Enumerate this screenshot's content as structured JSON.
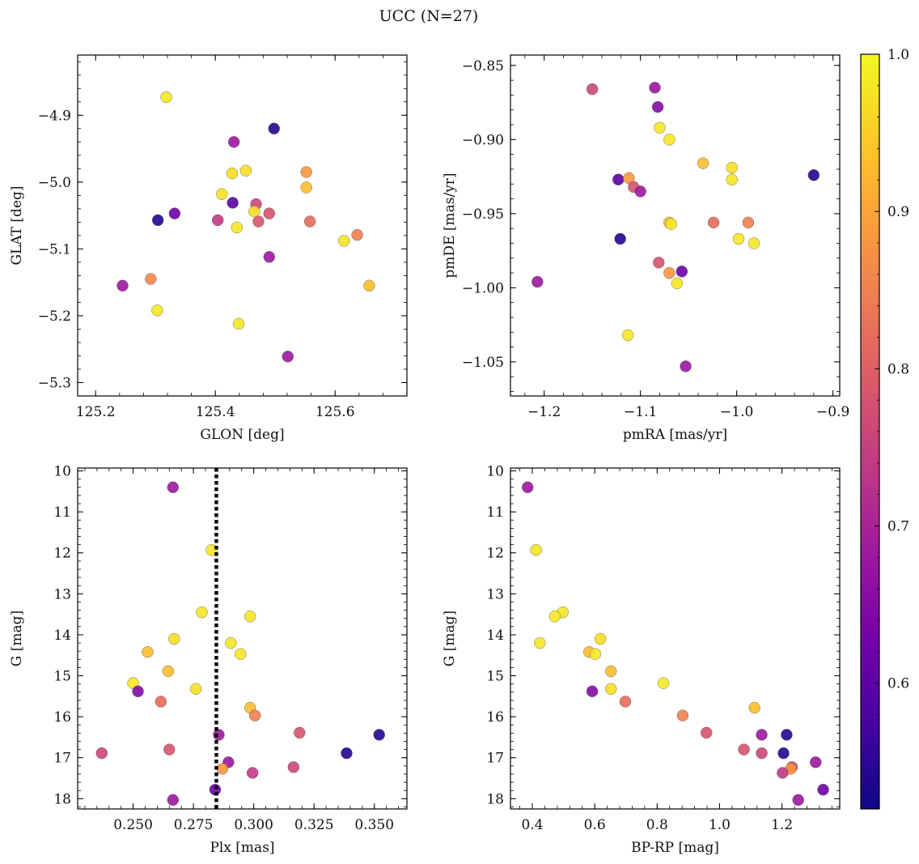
{
  "figure": {
    "title": "UCC (N=27)"
  },
  "colorbar": {
    "range": [
      0.52,
      1.0
    ],
    "ticks": [
      "0.6",
      "0.7",
      "0.8",
      "0.9",
      "1.0"
    ],
    "tick_values": [
      0.6,
      0.7,
      0.8,
      0.9,
      1.0
    ],
    "colormap": [
      "#0d0887",
      "#46039f",
      "#7201a8",
      "#9c179e",
      "#bd3786",
      "#d8576b",
      "#ed7953",
      "#fb9f3a",
      "#fdca26",
      "#f0f921"
    ]
  },
  "chart_data": [
    {
      "type": "scatter",
      "id": "glon-glat",
      "xlabel": "GLON [deg]",
      "ylabel": "GLAT [deg]",
      "xlim": [
        125.17,
        125.72
      ],
      "ylim": [
        -5.32,
        -4.81
      ],
      "y_inverted": false,
      "xticks": [
        125.2,
        125.4,
        125.6
      ],
      "xtick_labels": [
        "125.2",
        "125.4",
        "125.6"
      ],
      "yticks": [
        -4.9,
        -5.0,
        -5.1,
        -5.2,
        -5.3
      ],
      "ytick_labels": [
        "−4.9",
        "−5.0",
        "−5.1",
        "−5.2",
        "−5.3"
      ],
      "points": [
        {
          "x": 125.318,
          "y": -4.873,
          "c": 0.98
        },
        {
          "x": 125.498,
          "y": -4.92,
          "c": 0.54
        },
        {
          "x": 125.431,
          "y": -4.94,
          "c": 0.68
        },
        {
          "x": 125.451,
          "y": -4.983,
          "c": 0.97
        },
        {
          "x": 125.428,
          "y": -4.987,
          "c": 0.97
        },
        {
          "x": 125.552,
          "y": -4.985,
          "c": 0.88
        },
        {
          "x": 125.552,
          "y": -5.008,
          "c": 0.93
        },
        {
          "x": 125.411,
          "y": -5.018,
          "c": 0.97
        },
        {
          "x": 125.429,
          "y": -5.031,
          "c": 0.6
        },
        {
          "x": 125.468,
          "y": -5.033,
          "c": 0.76
        },
        {
          "x": 125.465,
          "y": -5.044,
          "c": 0.97
        },
        {
          "x": 125.49,
          "y": -5.047,
          "c": 0.78
        },
        {
          "x": 125.332,
          "y": -5.047,
          "c": 0.62
        },
        {
          "x": 125.304,
          "y": -5.057,
          "c": 0.54
        },
        {
          "x": 125.404,
          "y": -5.057,
          "c": 0.74
        },
        {
          "x": 125.472,
          "y": -5.059,
          "c": 0.78
        },
        {
          "x": 125.558,
          "y": -5.059,
          "c": 0.82
        },
        {
          "x": 125.436,
          "y": -5.068,
          "c": 0.98
        },
        {
          "x": 125.637,
          "y": -5.079,
          "c": 0.85
        },
        {
          "x": 125.615,
          "y": -5.088,
          "c": 0.98
        },
        {
          "x": 125.49,
          "y": -5.112,
          "c": 0.68
        },
        {
          "x": 125.292,
          "y": -5.145,
          "c": 0.86
        },
        {
          "x": 125.245,
          "y": -5.155,
          "c": 0.68
        },
        {
          "x": 125.657,
          "y": -5.155,
          "c": 0.93
        },
        {
          "x": 125.303,
          "y": -5.192,
          "c": 0.98
        },
        {
          "x": 125.439,
          "y": -5.212,
          "c": 0.98
        },
        {
          "x": 125.521,
          "y": -5.261,
          "c": 0.68
        }
      ]
    },
    {
      "type": "scatter",
      "id": "pmra-pmde",
      "xlabel": "pmRA [mas/yr]",
      "ylabel": "pmDE [mas/yr]",
      "xlim": [
        -1.235,
        -0.893
      ],
      "ylim": [
        -1.073,
        -0.843
      ],
      "y_inverted": false,
      "xticks": [
        -1.2,
        -1.1,
        -1.0,
        -0.9
      ],
      "xtick_labels": [
        "−1.2",
        "−1.1",
        "−1.0",
        "−0.9"
      ],
      "yticks": [
        -0.85,
        -0.9,
        -0.95,
        -1.0,
        -1.05
      ],
      "ytick_labels": [
        "−0.85",
        "−0.90",
        "−0.95",
        "−1.00",
        "−1.05"
      ],
      "points": [
        {
          "x": -1.15,
          "y": -0.866,
          "c": 0.76
        },
        {
          "x": -1.085,
          "y": -0.865,
          "c": 0.68
        },
        {
          "x": -1.082,
          "y": -0.878,
          "c": 0.65
        },
        {
          "x": -1.08,
          "y": -0.892,
          "c": 0.98
        },
        {
          "x": -1.07,
          "y": -0.9,
          "c": 0.98
        },
        {
          "x": -1.035,
          "y": -0.916,
          "c": 0.93
        },
        {
          "x": -1.005,
          "y": -0.919,
          "c": 0.97
        },
        {
          "x": -0.92,
          "y": -0.924,
          "c": 0.54
        },
        {
          "x": -1.123,
          "y": -0.927,
          "c": 0.6
        },
        {
          "x": -1.112,
          "y": -0.926,
          "c": 0.88
        },
        {
          "x": -1.005,
          "y": -0.927,
          "c": 0.98
        },
        {
          "x": -1.107,
          "y": -0.932,
          "c": 0.78
        },
        {
          "x": -1.1,
          "y": -0.935,
          "c": 0.68
        },
        {
          "x": -1.07,
          "y": -0.956,
          "c": 0.93
        },
        {
          "x": -1.068,
          "y": -0.957,
          "c": 0.98
        },
        {
          "x": -1.024,
          "y": -0.956,
          "c": 0.82
        },
        {
          "x": -0.988,
          "y": -0.956,
          "c": 0.85
        },
        {
          "x": -0.998,
          "y": -0.967,
          "c": 0.98
        },
        {
          "x": -0.982,
          "y": -0.97,
          "c": 0.98
        },
        {
          "x": -1.121,
          "y": -0.967,
          "c": 0.54
        },
        {
          "x": -1.081,
          "y": -0.983,
          "c": 0.78
        },
        {
          "x": -1.057,
          "y": -0.989,
          "c": 0.62
        },
        {
          "x": -1.07,
          "y": -0.99,
          "c": 0.88
        },
        {
          "x": -1.062,
          "y": -0.997,
          "c": 0.98
        },
        {
          "x": -1.207,
          "y": -0.996,
          "c": 0.68
        },
        {
          "x": -1.113,
          "y": -1.032,
          "c": 0.98
        },
        {
          "x": -1.053,
          "y": -1.053,
          "c": 0.68
        }
      ]
    },
    {
      "type": "scatter",
      "id": "plx-g",
      "xlabel": "Plx [mas]",
      "ylabel": "G [mag]",
      "xlim": [
        0.227,
        0.3635
      ],
      "ylim": [
        18.25,
        9.93
      ],
      "y_inverted": true,
      "xticks": [
        0.25,
        0.275,
        0.3,
        0.325,
        0.35
      ],
      "xtick_labels": [
        "0.250",
        "0.275",
        "0.300",
        "0.325",
        "0.350"
      ],
      "yticks": [
        10,
        11,
        12,
        13,
        14,
        15,
        16,
        17,
        18
      ],
      "ytick_labels": [
        "10",
        "11",
        "12",
        "13",
        "14",
        "15",
        "16",
        "17",
        "18"
      ],
      "vline": 0.2845,
      "points": [
        {
          "x": 0.2665,
          "y": 10.4,
          "c": 0.68
        },
        {
          "x": 0.2825,
          "y": 11.93,
          "c": 0.98
        },
        {
          "x": 0.2785,
          "y": 13.45,
          "c": 0.98
        },
        {
          "x": 0.2985,
          "y": 13.55,
          "c": 0.98
        },
        {
          "x": 0.267,
          "y": 14.1,
          "c": 0.97
        },
        {
          "x": 0.2905,
          "y": 14.2,
          "c": 0.98
        },
        {
          "x": 0.256,
          "y": 14.42,
          "c": 0.93
        },
        {
          "x": 0.2945,
          "y": 14.47,
          "c": 0.98
        },
        {
          "x": 0.2645,
          "y": 14.89,
          "c": 0.93
        },
        {
          "x": 0.25,
          "y": 15.18,
          "c": 0.98
        },
        {
          "x": 0.276,
          "y": 15.32,
          "c": 0.97
        },
        {
          "x": 0.252,
          "y": 15.38,
          "c": 0.65
        },
        {
          "x": 0.2615,
          "y": 15.63,
          "c": 0.82
        },
        {
          "x": 0.2985,
          "y": 15.78,
          "c": 0.93
        },
        {
          "x": 0.3005,
          "y": 15.97,
          "c": 0.85
        },
        {
          "x": 0.319,
          "y": 16.39,
          "c": 0.78
        },
        {
          "x": 0.352,
          "y": 16.44,
          "c": 0.54
        },
        {
          "x": 0.2855,
          "y": 16.44,
          "c": 0.68
        },
        {
          "x": 0.265,
          "y": 16.8,
          "c": 0.78
        },
        {
          "x": 0.237,
          "y": 16.89,
          "c": 0.76
        },
        {
          "x": 0.3385,
          "y": 16.89,
          "c": 0.54
        },
        {
          "x": 0.2895,
          "y": 17.11,
          "c": 0.68
        },
        {
          "x": 0.3165,
          "y": 17.23,
          "c": 0.76
        },
        {
          "x": 0.287,
          "y": 17.27,
          "c": 0.88
        },
        {
          "x": 0.2995,
          "y": 17.37,
          "c": 0.74
        },
        {
          "x": 0.284,
          "y": 17.78,
          "c": 0.62
        },
        {
          "x": 0.2665,
          "y": 18.03,
          "c": 0.68
        }
      ]
    },
    {
      "type": "scatter",
      "id": "bprp-g",
      "xlabel": "BP-RP [mag]",
      "ylabel": "G [mag]",
      "xlim": [
        0.33,
        1.385
      ],
      "ylim": [
        18.25,
        9.93
      ],
      "y_inverted": true,
      "xticks": [
        0.4,
        0.6,
        0.8,
        1.0,
        1.2
      ],
      "xtick_labels": [
        "0.4",
        "0.6",
        "0.8",
        "1.0",
        "1.2"
      ],
      "yticks": [
        10,
        11,
        12,
        13,
        14,
        15,
        16,
        17,
        18
      ],
      "ytick_labels": [
        "10",
        "11",
        "12",
        "13",
        "14",
        "15",
        "16",
        "17",
        "18"
      ],
      "points": [
        {
          "x": 0.385,
          "y": 10.4,
          "c": 0.68
        },
        {
          "x": 0.412,
          "y": 11.93,
          "c": 0.98
        },
        {
          "x": 0.498,
          "y": 13.45,
          "c": 0.98
        },
        {
          "x": 0.472,
          "y": 13.55,
          "c": 0.98
        },
        {
          "x": 0.618,
          "y": 14.1,
          "c": 0.97
        },
        {
          "x": 0.424,
          "y": 14.2,
          "c": 0.98
        },
        {
          "x": 0.582,
          "y": 14.42,
          "c": 0.93
        },
        {
          "x": 0.602,
          "y": 14.47,
          "c": 0.98
        },
        {
          "x": 0.652,
          "y": 14.89,
          "c": 0.93
        },
        {
          "x": 0.82,
          "y": 15.18,
          "c": 0.98
        },
        {
          "x": 0.652,
          "y": 15.32,
          "c": 0.97
        },
        {
          "x": 0.592,
          "y": 15.38,
          "c": 0.65
        },
        {
          "x": 0.698,
          "y": 15.63,
          "c": 0.82
        },
        {
          "x": 1.112,
          "y": 15.78,
          "c": 0.93
        },
        {
          "x": 0.882,
          "y": 15.97,
          "c": 0.85
        },
        {
          "x": 0.958,
          "y": 16.39,
          "c": 0.78
        },
        {
          "x": 1.215,
          "y": 16.44,
          "c": 0.54
        },
        {
          "x": 1.135,
          "y": 16.44,
          "c": 0.68
        },
        {
          "x": 1.078,
          "y": 16.8,
          "c": 0.78
        },
        {
          "x": 1.135,
          "y": 16.89,
          "c": 0.76
        },
        {
          "x": 1.205,
          "y": 16.89,
          "c": 0.54
        },
        {
          "x": 1.308,
          "y": 17.11,
          "c": 0.68
        },
        {
          "x": 1.232,
          "y": 17.23,
          "c": 0.76
        },
        {
          "x": 1.228,
          "y": 17.27,
          "c": 0.88
        },
        {
          "x": 1.202,
          "y": 17.37,
          "c": 0.74
        },
        {
          "x": 1.332,
          "y": 17.78,
          "c": 0.62
        },
        {
          "x": 1.252,
          "y": 18.03,
          "c": 0.68
        }
      ]
    }
  ]
}
